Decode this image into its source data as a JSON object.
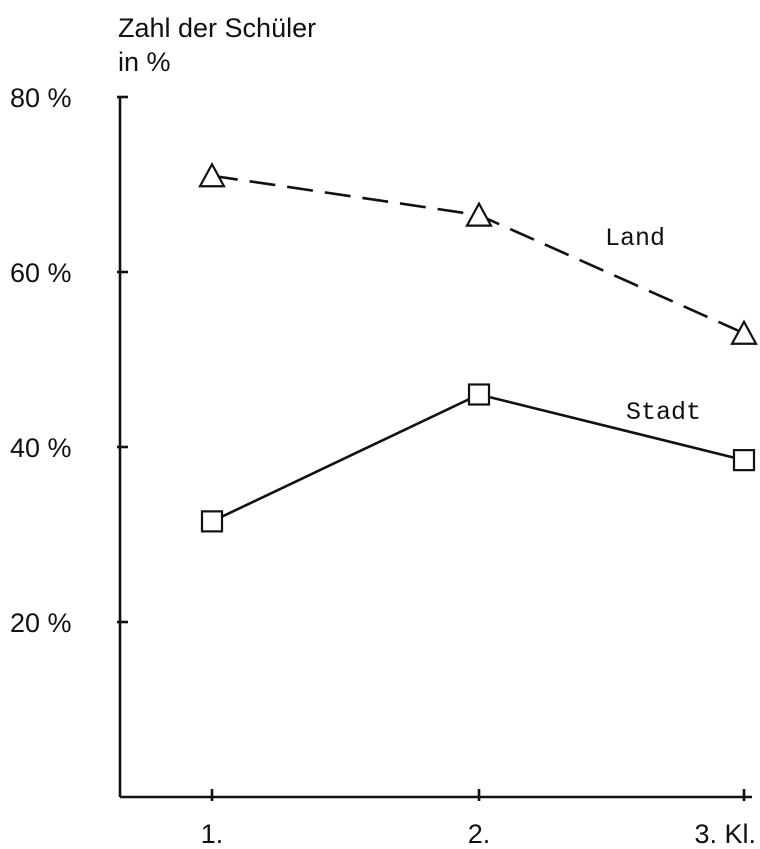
{
  "chart_data": {
    "type": "line",
    "ylabel_line1": "Zahl der Schüler",
    "ylabel_line2": "in %",
    "categories": [
      "1.",
      "2.",
      "3. Kl."
    ],
    "yticks": [
      {
        "value": 20,
        "label": "20 %"
      },
      {
        "value": 40,
        "label": "40 %"
      },
      {
        "value": 60,
        "label": "60 %"
      },
      {
        "value": 80,
        "label": "80 %"
      }
    ],
    "ylim": [
      0,
      80
    ],
    "grid": false,
    "series": [
      {
        "name": "Land",
        "marker": "triangle",
        "line_style": "dashed",
        "values": [
          71,
          66.5,
          53
        ]
      },
      {
        "name": "Stadt",
        "marker": "square",
        "line_style": "solid",
        "values": [
          31.5,
          46,
          38.5
        ]
      }
    ]
  }
}
